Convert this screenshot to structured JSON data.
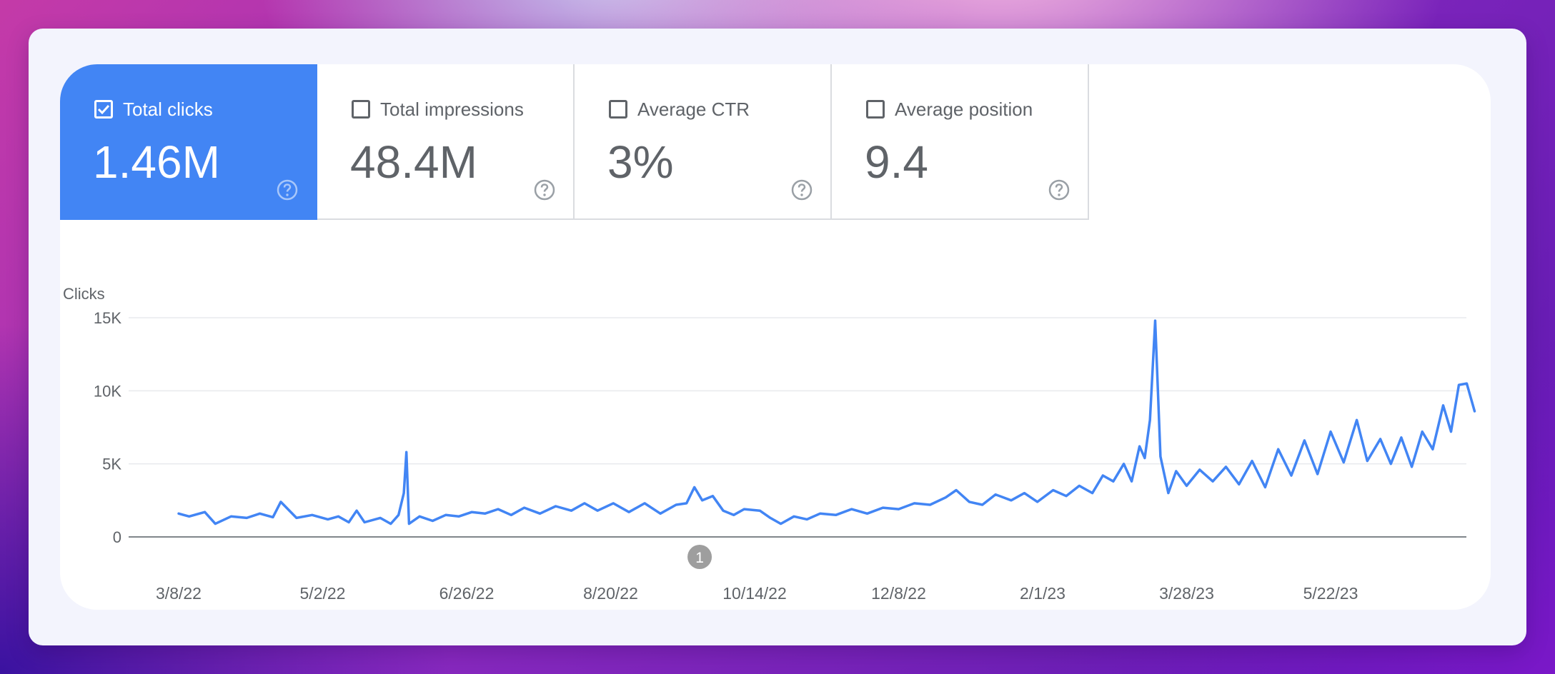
{
  "metrics": [
    {
      "label": "Total clicks",
      "value": "1.46M",
      "checked": true,
      "icon": "help-icon"
    },
    {
      "label": "Total impressions",
      "value": "48.4M",
      "checked": false,
      "icon": "help-icon"
    },
    {
      "label": "Average CTR",
      "value": "3%",
      "checked": false,
      "icon": "help-icon"
    },
    {
      "label": "Average position",
      "value": "9.4",
      "checked": false,
      "icon": "help-icon"
    }
  ],
  "colors": {
    "accent": "#4285f4",
    "line": "#4285f4",
    "grid": "#e8eaed",
    "axis": "#80868b",
    "text": "#5f6368",
    "annotation": "#9e9e9e"
  },
  "chart_data": {
    "type": "line",
    "ylabel": "Clicks",
    "ylim": [
      0,
      15000
    ],
    "y_ticks": [
      "0",
      "5K",
      "10K",
      "15K"
    ],
    "y_tick_values": [
      0,
      5000,
      10000,
      15000
    ],
    "x_ticks": [
      "3/8/22",
      "5/2/22",
      "6/26/22",
      "8/20/22",
      "10/14/22",
      "12/8/22",
      "2/1/23",
      "3/28/23",
      "5/22/23"
    ],
    "x_tick_dates": [
      "2022-03-08",
      "2022-05-02",
      "2022-06-26",
      "2022-08-20",
      "2022-10-14",
      "2022-12-08",
      "2023-02-01",
      "2023-03-28",
      "2023-05-22"
    ],
    "annotation": {
      "label": "1",
      "date": "2022-09-23"
    },
    "grid": true,
    "series": [
      {
        "values": [
          [
            "2022-03-08",
            1600
          ],
          [
            "2022-03-12",
            1400
          ],
          [
            "2022-03-18",
            1700
          ],
          [
            "2022-03-22",
            900
          ],
          [
            "2022-03-28",
            1400
          ],
          [
            "2022-04-03",
            1300
          ],
          [
            "2022-04-08",
            1600
          ],
          [
            "2022-04-13",
            1350
          ],
          [
            "2022-04-16",
            2400
          ],
          [
            "2022-04-22",
            1300
          ],
          [
            "2022-04-28",
            1500
          ],
          [
            "2022-05-04",
            1200
          ],
          [
            "2022-05-08",
            1400
          ],
          [
            "2022-05-12",
            1000
          ],
          [
            "2022-05-15",
            1800
          ],
          [
            "2022-05-18",
            1000
          ],
          [
            "2022-05-24",
            1300
          ],
          [
            "2022-05-28",
            900
          ],
          [
            "2022-05-31",
            1500
          ],
          [
            "2022-06-02",
            3000
          ],
          [
            "2022-06-03",
            5800
          ],
          [
            "2022-06-04",
            900
          ],
          [
            "2022-06-08",
            1400
          ],
          [
            "2022-06-13",
            1100
          ],
          [
            "2022-06-18",
            1500
          ],
          [
            "2022-06-23",
            1400
          ],
          [
            "2022-06-28",
            1700
          ],
          [
            "2022-07-03",
            1600
          ],
          [
            "2022-07-08",
            1900
          ],
          [
            "2022-07-13",
            1500
          ],
          [
            "2022-07-18",
            2000
          ],
          [
            "2022-07-24",
            1600
          ],
          [
            "2022-07-30",
            2100
          ],
          [
            "2022-08-05",
            1800
          ],
          [
            "2022-08-10",
            2300
          ],
          [
            "2022-08-15",
            1800
          ],
          [
            "2022-08-21",
            2300
          ],
          [
            "2022-08-27",
            1700
          ],
          [
            "2022-09-02",
            2300
          ],
          [
            "2022-09-08",
            1600
          ],
          [
            "2022-09-14",
            2200
          ],
          [
            "2022-09-18",
            2300
          ],
          [
            "2022-09-21",
            3400
          ],
          [
            "2022-09-24",
            2500
          ],
          [
            "2022-09-28",
            2800
          ],
          [
            "2022-10-02",
            1800
          ],
          [
            "2022-10-06",
            1500
          ],
          [
            "2022-10-10",
            1900
          ],
          [
            "2022-10-16",
            1800
          ],
          [
            "2022-10-20",
            1300
          ],
          [
            "2022-10-24",
            900
          ],
          [
            "2022-10-29",
            1400
          ],
          [
            "2022-11-03",
            1200
          ],
          [
            "2022-11-08",
            1600
          ],
          [
            "2022-11-14",
            1500
          ],
          [
            "2022-11-20",
            1900
          ],
          [
            "2022-11-26",
            1600
          ],
          [
            "2022-12-02",
            2000
          ],
          [
            "2022-12-08",
            1900
          ],
          [
            "2022-12-14",
            2300
          ],
          [
            "2022-12-20",
            2200
          ],
          [
            "2022-12-26",
            2700
          ],
          [
            "2022-12-30",
            3200
          ],
          [
            "2023-01-04",
            2400
          ],
          [
            "2023-01-09",
            2200
          ],
          [
            "2023-01-14",
            2900
          ],
          [
            "2023-01-20",
            2500
          ],
          [
            "2023-01-25",
            3000
          ],
          [
            "2023-01-30",
            2400
          ],
          [
            "2023-02-05",
            3200
          ],
          [
            "2023-02-10",
            2800
          ],
          [
            "2023-02-15",
            3500
          ],
          [
            "2023-02-20",
            3000
          ],
          [
            "2023-02-24",
            4200
          ],
          [
            "2023-02-28",
            3800
          ],
          [
            "2023-03-04",
            5000
          ],
          [
            "2023-03-07",
            3800
          ],
          [
            "2023-03-10",
            6200
          ],
          [
            "2023-03-12",
            5400
          ],
          [
            "2023-03-14",
            8000
          ],
          [
            "2023-03-16",
            14800
          ],
          [
            "2023-03-18",
            5500
          ],
          [
            "2023-03-21",
            3000
          ],
          [
            "2023-03-24",
            4500
          ],
          [
            "2023-03-28",
            3500
          ],
          [
            "2023-04-02",
            4600
          ],
          [
            "2023-04-07",
            3800
          ],
          [
            "2023-04-12",
            4800
          ],
          [
            "2023-04-17",
            3600
          ],
          [
            "2023-04-22",
            5200
          ],
          [
            "2023-04-27",
            3400
          ],
          [
            "2023-05-02",
            6000
          ],
          [
            "2023-05-07",
            4200
          ],
          [
            "2023-05-12",
            6600
          ],
          [
            "2023-05-17",
            4300
          ],
          [
            "2023-05-22",
            7200
          ],
          [
            "2023-05-27",
            5100
          ],
          [
            "2023-06-01",
            8000
          ],
          [
            "2023-06-05",
            5200
          ],
          [
            "2023-06-10",
            6700
          ],
          [
            "2023-06-14",
            5000
          ],
          [
            "2023-06-18",
            6800
          ],
          [
            "2023-06-22",
            4800
          ],
          [
            "2023-06-26",
            7200
          ],
          [
            "2023-06-30",
            6000
          ],
          [
            "2023-07-04",
            9000
          ],
          [
            "2023-07-07",
            7200
          ],
          [
            "2023-07-10",
            10400
          ],
          [
            "2023-07-13",
            10500
          ],
          [
            "2023-07-16",
            8600
          ]
        ]
      }
    ]
  }
}
